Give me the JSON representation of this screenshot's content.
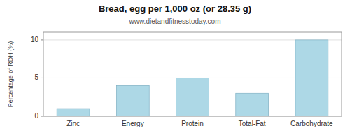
{
  "chart_data": {
    "type": "bar",
    "title": "Bread, egg per 1,000 oz (or 28.35 g)",
    "subtitle": "www.dietandfitnesstoday.com",
    "categories": [
      "Zinc",
      "Energy",
      "Protein",
      "Total-Fat",
      "Carbohydrate"
    ],
    "values": [
      1.0,
      4.0,
      5.0,
      3.0,
      10.0
    ],
    "color": "#add8e6",
    "ylabel": "Percentage of RDH (%)",
    "ylim": [
      0,
      11
    ],
    "yticks": [
      0,
      5,
      10
    ],
    "grid": true
  }
}
